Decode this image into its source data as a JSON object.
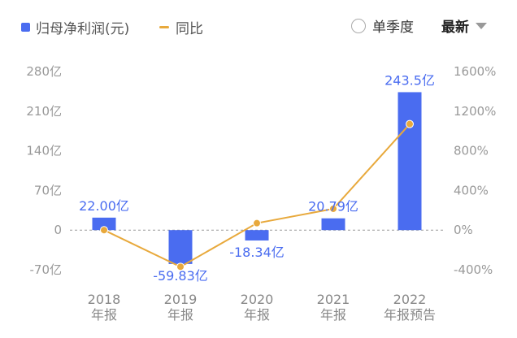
{
  "legend": {
    "bar_label": "归母净利润(元)",
    "line_label": "同比"
  },
  "controls": {
    "quarter_toggle_label": "单季度",
    "period_select_value": "最新"
  },
  "colors": {
    "bar": "#4a6cf0",
    "line": "#e8a93c",
    "zero_line": "#999999",
    "tick": "#999999"
  },
  "chart_data": {
    "type": "bar",
    "categories": [
      [
        "2018",
        "年报"
      ],
      [
        "2019",
        "年报"
      ],
      [
        "2020",
        "年报"
      ],
      [
        "2021",
        "年报"
      ],
      [
        "2022",
        "年报预告"
      ]
    ],
    "series": [
      {
        "name": "归母净利润(元)",
        "type": "bar",
        "axis": "left",
        "values": [
          22.0,
          -59.83,
          -18.34,
          20.79,
          243.5
        ],
        "labels": [
          "22.00亿",
          "-59.83亿",
          "-18.34亿",
          "20.79亿",
          "243.5亿"
        ]
      },
      {
        "name": "同比",
        "type": "line",
        "axis": "right",
        "values": [
          0,
          -370,
          70,
          215,
          1070
        ]
      }
    ],
    "y_left": {
      "ylim": [
        -70,
        280
      ],
      "ticks": [
        280,
        210,
        140,
        70,
        0,
        -70
      ],
      "tick_labels": [
        "280亿",
        "210亿",
        "140亿",
        "70亿",
        "0",
        "-70亿"
      ]
    },
    "y_right": {
      "ylim": [
        -400,
        1600
      ],
      "ticks": [
        1600,
        1200,
        800,
        400,
        0,
        -400
      ],
      "tick_labels": [
        "1600%",
        "1200%",
        "800%",
        "400%",
        "0%",
        "-400%"
      ]
    },
    "grid": false,
    "zero_line": "dashed"
  }
}
